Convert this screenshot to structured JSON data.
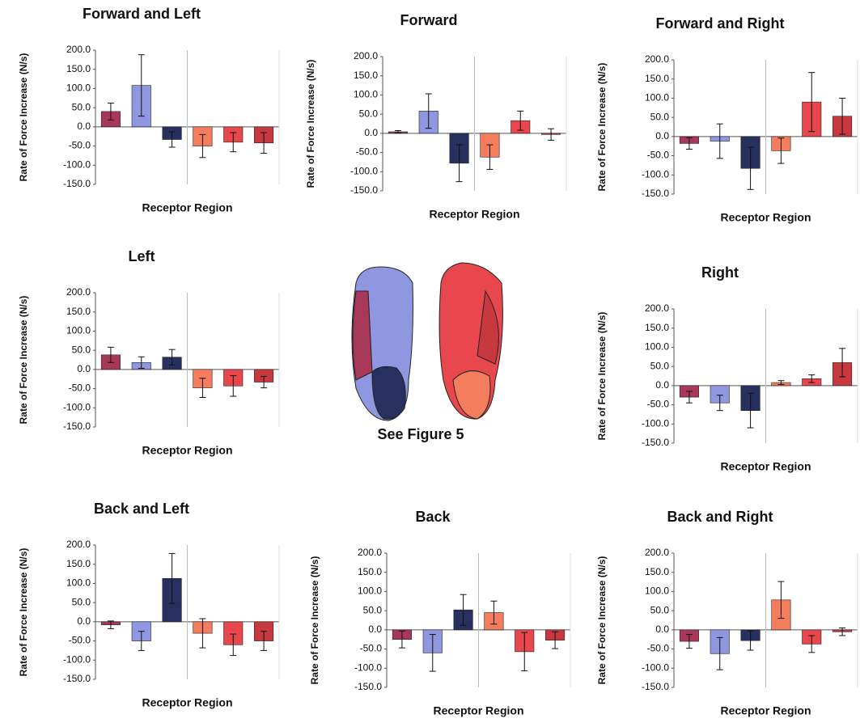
{
  "chart_data": [
    {
      "type": "bar",
      "title": "Forward and Left",
      "y_label": "Rate of Force Increase (N/s)",
      "x_label": "Receptor Region",
      "categories": [
        null,
        null,
        null,
        null,
        null,
        null
      ],
      "values": [
        40,
        108,
        -33,
        -50,
        -40,
        -42
      ],
      "errors": [
        22,
        80,
        20,
        30,
        25,
        27
      ],
      "colors": [
        "#a8385a",
        "#8f97e0",
        "#27305e",
        "#f47d5e",
        "#e8474e",
        "#c8393f"
      ],
      "ylim": [
        -150,
        200
      ],
      "yticks": [
        {
          "value": -150,
          "label": "-150.0"
        },
        {
          "value": -100,
          "label": "-100.0"
        },
        {
          "value": -50,
          "label": "-50.0"
        },
        {
          "value": 0,
          "label": "0.0"
        },
        {
          "value": 50,
          "label": "50.0"
        },
        {
          "value": 100,
          "label": "100.0"
        },
        {
          "value": 150,
          "label": "150.0"
        },
        {
          "value": 200,
          "label": "200.0"
        }
      ]
    },
    {
      "type": "bar",
      "title": "Forward",
      "y_label": "Rate of Force Increase (N/s)",
      "x_label": "Receptor Region",
      "categories": [
        null,
        null,
        null,
        null,
        null,
        null
      ],
      "values": [
        4,
        58,
        -78,
        -62,
        33,
        -3
      ],
      "errors": [
        3,
        45,
        48,
        32,
        25,
        15
      ],
      "colors": [
        "#a8385a",
        "#8f97e0",
        "#27305e",
        "#f47d5e",
        "#e8474e",
        "#c8393f"
      ],
      "ylim": [
        -150,
        200
      ],
      "yticks": [
        {
          "value": -150,
          "label": "-150.0"
        },
        {
          "value": -100,
          "label": "-100.0"
        },
        {
          "value": -50,
          "label": "-50.0"
        },
        {
          "value": 0,
          "label": "0.0"
        },
        {
          "value": 50,
          "label": "50.0"
        },
        {
          "value": 100,
          "label": "100.0"
        },
        {
          "value": 150,
          "label": "150.0"
        },
        {
          "value": 200,
          "label": "200.0"
        }
      ]
    },
    {
      "type": "bar",
      "title": "Forward and Right",
      "y_label": "Rate of Force Increase (N/s)",
      "x_label": "Receptor Region",
      "categories": [
        null,
        null,
        null,
        null,
        null,
        null
      ],
      "values": [
        -18,
        -12,
        -83,
        -37,
        90,
        53
      ],
      "errors": [
        15,
        45,
        55,
        33,
        77,
        47
      ],
      "colors": [
        "#a8385a",
        "#8f97e0",
        "#27305e",
        "#f47d5e",
        "#e8474e",
        "#c8393f"
      ],
      "ylim": [
        -150,
        200
      ],
      "yticks": [
        {
          "value": -150,
          "label": "-150.0"
        },
        {
          "value": -100,
          "label": "-100.0"
        },
        {
          "value": -50,
          "label": "-50.0"
        },
        {
          "value": 0,
          "label": "0.0"
        },
        {
          "value": 50,
          "label": "50.0"
        },
        {
          "value": 100,
          "label": "100.0"
        },
        {
          "value": 150,
          "label": "150.0"
        },
        {
          "value": 200,
          "label": "200.0"
        }
      ]
    },
    {
      "type": "bar",
      "title": "Left",
      "y_label": "Rate of Force Increase (N/s)",
      "x_label": "Receptor Region",
      "categories": [
        null,
        null,
        null,
        null,
        null,
        null
      ],
      "values": [
        38,
        18,
        32,
        -48,
        -43,
        -33
      ],
      "errors": [
        20,
        15,
        20,
        25,
        27,
        15
      ],
      "colors": [
        "#a8385a",
        "#8f97e0",
        "#27305e",
        "#f47d5e",
        "#e8474e",
        "#c8393f"
      ],
      "ylim": [
        -150,
        200
      ],
      "yticks": [
        {
          "value": -150,
          "label": "-150.0"
        },
        {
          "value": -100,
          "label": "-100.0"
        },
        {
          "value": -50,
          "label": "-50.0"
        },
        {
          "value": 0,
          "label": "0.0"
        },
        {
          "value": 50,
          "label": "50.0"
        },
        {
          "value": 100,
          "label": "100.0"
        },
        {
          "value": 150,
          "label": "150.0"
        },
        {
          "value": 200,
          "label": "200.0"
        }
      ]
    },
    {
      "type": "bar",
      "title": "Right",
      "y_label": "Rate of Force Increase (N/s)",
      "x_label": "Receptor Region",
      "categories": [
        null,
        null,
        null,
        null,
        null,
        null
      ],
      "values": [
        -30,
        -45,
        -65,
        8,
        18,
        60
      ],
      "errors": [
        15,
        20,
        45,
        5,
        10,
        37
      ],
      "colors": [
        "#a8385a",
        "#8f97e0",
        "#27305e",
        "#f47d5e",
        "#e8474e",
        "#c8393f"
      ],
      "ylim": [
        -150,
        200
      ],
      "yticks": [
        {
          "value": -150,
          "label": "-150.0"
        },
        {
          "value": -100,
          "label": "-100.0"
        },
        {
          "value": -50,
          "label": "-50.0"
        },
        {
          "value": 0,
          "label": "0.0"
        },
        {
          "value": 50,
          "label": "50.0"
        },
        {
          "value": 100,
          "label": "100.0"
        },
        {
          "value": 150,
          "label": "150.0"
        },
        {
          "value": 200,
          "label": "200.0"
        }
      ]
    },
    {
      "type": "bar",
      "title": "Back and Left",
      "y_label": "Rate of Force Increase (N/s)",
      "x_label": "Receptor Region",
      "categories": [
        null,
        null,
        null,
        null,
        null,
        null
      ],
      "values": [
        -8,
        -50,
        113,
        -30,
        -60,
        -50
      ],
      "errors": [
        10,
        25,
        65,
        38,
        28,
        25
      ],
      "colors": [
        "#a8385a",
        "#8f97e0",
        "#27305e",
        "#f47d5e",
        "#e8474e",
        "#c8393f"
      ],
      "ylim": [
        -150,
        200
      ],
      "yticks": [
        {
          "value": -150,
          "label": "-150.0"
        },
        {
          "value": -100,
          "label": "-100.0"
        },
        {
          "value": -50,
          "label": "-50.0"
        },
        {
          "value": 0,
          "label": "0.0"
        },
        {
          "value": 50,
          "label": "50.0"
        },
        {
          "value": 100,
          "label": "100.0"
        },
        {
          "value": 150,
          "label": "150.0"
        },
        {
          "value": 200,
          "label": "200.0"
        }
      ]
    },
    {
      "type": "bar",
      "title": "Back",
      "y_label": "Rate of Force Increase (N/s)",
      "x_label": "Receptor Region",
      "categories": [
        null,
        null,
        null,
        null,
        null,
        null
      ],
      "values": [
        -25,
        -60,
        52,
        45,
        -57,
        -27
      ],
      "errors": [
        22,
        48,
        40,
        30,
        50,
        22
      ],
      "colors": [
        "#a8385a",
        "#8f97e0",
        "#27305e",
        "#f47d5e",
        "#e8474e",
        "#c8393f"
      ],
      "ylim": [
        -150,
        200
      ],
      "yticks": [
        {
          "value": -150,
          "label": "-150.0"
        },
        {
          "value": -100,
          "label": "-100.0"
        },
        {
          "value": -50,
          "label": "-50.0"
        },
        {
          "value": 0,
          "label": "0.0"
        },
        {
          "value": 50,
          "label": "50.0"
        },
        {
          "value": 100,
          "label": "100.0"
        },
        {
          "value": 150,
          "label": "150.0"
        },
        {
          "value": 200,
          "label": "200.0"
        }
      ]
    },
    {
      "type": "bar",
      "title": "Back and Right",
      "y_label": "Rate of Force Increase (N/s)",
      "x_label": "Receptor Region",
      "categories": [
        null,
        null,
        null,
        null,
        null,
        null
      ],
      "values": [
        -30,
        -62,
        -28,
        78,
        -37,
        -5
      ],
      "errors": [
        18,
        42,
        25,
        48,
        22,
        10
      ],
      "colors": [
        "#a8385a",
        "#8f97e0",
        "#27305e",
        "#f47d5e",
        "#e8474e",
        "#c8393f"
      ],
      "ylim": [
        -150,
        200
      ],
      "yticks": [
        {
          "value": -150,
          "label": "-150.0"
        },
        {
          "value": -100,
          "label": "-100.0"
        },
        {
          "value": -50,
          "label": "-50.0"
        },
        {
          "value": 0,
          "label": "0.0"
        },
        {
          "value": 50,
          "label": "50.0"
        },
        {
          "value": 100,
          "label": "100.0"
        },
        {
          "value": 150,
          "label": "150.0"
        },
        {
          "value": 200,
          "label": "200.0"
        }
      ]
    }
  ],
  "center_caption": "See Figure 5"
}
